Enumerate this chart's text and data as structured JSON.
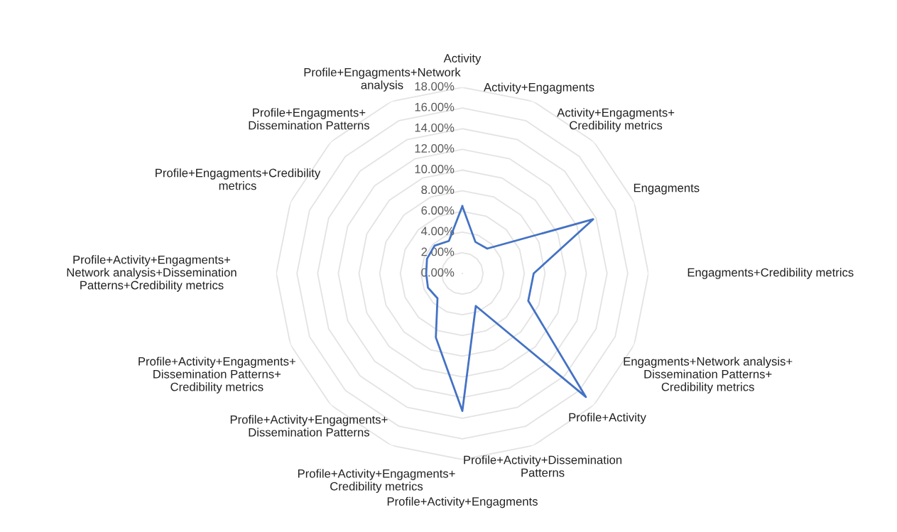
{
  "chart_data": {
    "type": "radar",
    "categories": [
      "Activity",
      "Activity+Engagments",
      "Activity+Engagments+Credibility metrics",
      "Engagments",
      "Engagments+Credibility metrics",
      "Engagments+Network analysis+Dissemination Patterns+Credibility metrics",
      "Profile+Activity",
      "Profile+Activity+Dissemination Patterns",
      "Profile+Activity+Engagments",
      "Profile+Activity+Engagments+Credibility metrics",
      "Profile+Activity+Engagments+Dissemination Patterns",
      "Profile+Activity+Engagments+Dissemination Patterns+Credibility metrics",
      "Profile+Activity+Engagments+Network analysis+Dissemination Patterns+Credibility metrics",
      "Profile+Engagments+Credibility metrics",
      "Profile+Engagments+Dissemination Patterns",
      "Profile+Engagments+Network analysis"
    ],
    "series": [
      {
        "color": "#4472c4",
        "values": [
          6.5,
          3.3,
          3.4,
          13.7,
          6.9,
          6.9,
          16.9,
          3.4,
          13.3,
          6.7,
          3.4,
          3.6,
          3.5,
          3.7,
          3.8,
          3.4
        ]
      }
    ],
    "ylim": [
      0,
      18
    ],
    "yticks": [
      {
        "value": 0,
        "label": "0.00%"
      },
      {
        "value": 2,
        "label": "2.00%"
      },
      {
        "value": 4,
        "label": "4.00%"
      },
      {
        "value": 6,
        "label": "6.00%"
      },
      {
        "value": 8,
        "label": "8.00%"
      },
      {
        "value": 10,
        "label": "10.00%"
      },
      {
        "value": 12,
        "label": "12.00%"
      },
      {
        "value": 14,
        "label": "14.00%"
      },
      {
        "value": 16,
        "label": "16.00%"
      },
      {
        "value": 18,
        "label": "18.00%"
      }
    ],
    "grid": true,
    "line_style": "solid",
    "marker": "none"
  }
}
